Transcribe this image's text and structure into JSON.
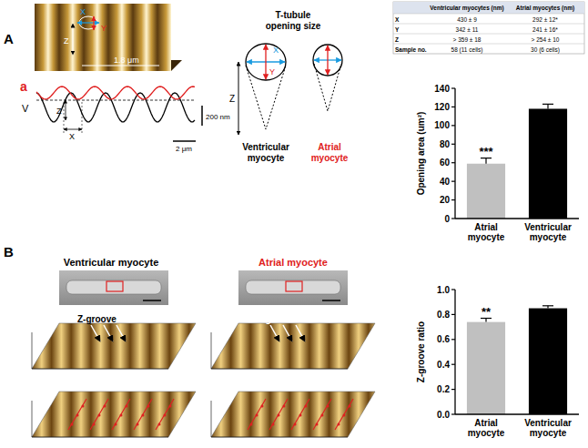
{
  "panel_labels": [
    "A",
    "B"
  ],
  "panel_a": {
    "image_labels": {
      "x": "X",
      "y": "Y",
      "z": "Z",
      "width": "1.8 μm"
    },
    "profile": {
      "traces": [
        "a",
        "V"
      ],
      "z": "Z",
      "x": "X",
      "scale_v": "200 nm",
      "scale_h": "2 μm"
    },
    "diagram": {
      "title": "T-tubule opening size",
      "x": "X",
      "y": "Y",
      "z": "Z",
      "left": "Ventricular myocyte",
      "right": "Atrial myocyte"
    }
  },
  "table": {
    "header": [
      "Ventricular myocytes (nm)",
      "Atrial myocytes (nm)"
    ],
    "rows": [
      [
        "X",
        "430 ± 9",
        "292 ± 12*"
      ],
      [
        "Y",
        "342 ± 11",
        "241 ± 16*"
      ],
      [
        "Z",
        "> 359 ± 18",
        "> 254 ± 10"
      ],
      [
        "Sample no.",
        "58 (11 cells)",
        "30 (6 cells)"
      ]
    ]
  },
  "panel_b": {
    "titles": [
      "Ventricular myocyte",
      "Atrial myocyte"
    ],
    "groove_label": "Z-groove"
  },
  "chart_data": [
    {
      "type": "bar",
      "y_label": "Opening area (um²)",
      "categories": [
        "Atrial myocyte",
        "Ventricular myocyte"
      ],
      "values": [
        59,
        118
      ],
      "errors": [
        6,
        5
      ],
      "colors": [
        "#c0c0c0",
        "#000000"
      ],
      "annotations": [
        "***",
        null
      ],
      "ylim": [
        0,
        140
      ],
      "yticks": [
        0,
        20,
        40,
        60,
        80,
        100,
        120,
        140
      ]
    },
    {
      "type": "bar",
      "y_label": "Z-groove ratio",
      "categories": [
        "Atrial myocyte",
        "Ventricular myocyte"
      ],
      "values": [
        0.74,
        0.85
      ],
      "errors": [
        0.03,
        0.02
      ],
      "colors": [
        "#c0c0c0",
        "#000000"
      ],
      "annotations": [
        "**",
        null
      ],
      "ylim": [
        0,
        1
      ],
      "yticks": [
        {
          "value": 0,
          "label": "0.0"
        },
        0.2,
        0.4,
        0.6,
        0.8,
        {
          "value": 1,
          "label": "1.0"
        }
      ]
    }
  ]
}
